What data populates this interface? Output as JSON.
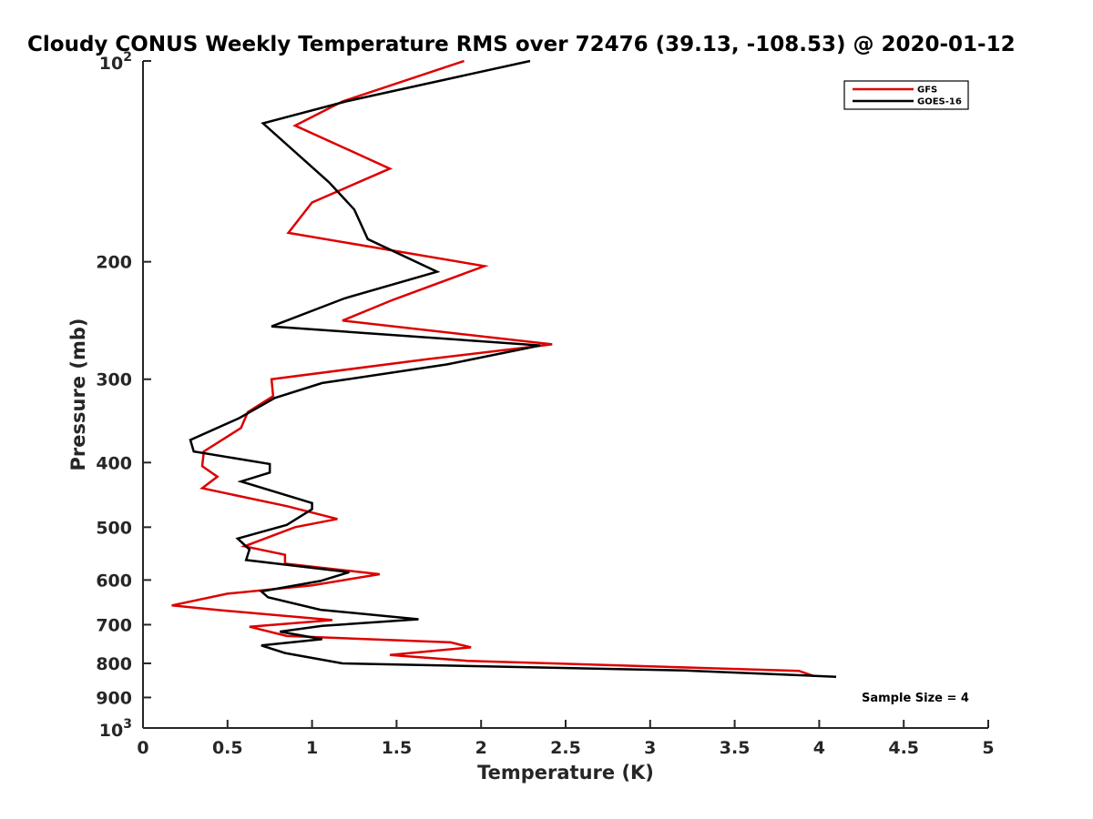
{
  "chart_data": {
    "type": "line",
    "title": "Cloudy CONUS Weekly Temperature RMS over 72476 (39.13, -108.53) @ 2020-01-12",
    "xlabel": "Temperature (K)",
    "ylabel": "Pressure (mb)",
    "xlim": [
      0,
      5
    ],
    "ylim": [
      100,
      1000
    ],
    "y_scale": "log",
    "y_reversed": true,
    "x_ticks": [
      "0",
      "0.5",
      "1",
      "1.5",
      "2",
      "2.5",
      "3",
      "3.5",
      "4",
      "4.5",
      "5"
    ],
    "y_ticks": [
      {
        "value": 200,
        "label": "200"
      },
      {
        "value": 300,
        "label": "300"
      },
      {
        "value": 400,
        "label": "400"
      },
      {
        "value": 500,
        "label": "500"
      },
      {
        "value": 600,
        "label": "600"
      },
      {
        "value": 700,
        "label": "700"
      },
      {
        "value": 800,
        "label": "800"
      },
      {
        "value": 900,
        "label": "900"
      }
    ],
    "y_tick_top": {
      "value": 100,
      "base": "10",
      "exp": "2"
    },
    "y_tick_bottom": {
      "value": 1000,
      "base": "10",
      "exp": "3"
    },
    "grid": false,
    "legend_position": "top-right",
    "annotation": "Sample Size = 4",
    "series": [
      {
        "name": "GFS",
        "color": "#dd0000",
        "points": [
          [
            1.9,
            100
          ],
          [
            1.18,
            115
          ],
          [
            0.9,
            125
          ],
          [
            1.46,
            145
          ],
          [
            1.0,
            163
          ],
          [
            0.86,
            181
          ],
          [
            2.02,
            203
          ],
          [
            1.48,
            228
          ],
          [
            1.18,
            245
          ],
          [
            2.42,
            266
          ],
          [
            1.68,
            280
          ],
          [
            0.76,
            300
          ],
          [
            0.77,
            318
          ],
          [
            0.62,
            336
          ],
          [
            0.58,
            355
          ],
          [
            0.36,
            385
          ],
          [
            0.35,
            405
          ],
          [
            0.44,
            420
          ],
          [
            0.35,
            437
          ],
          [
            0.85,
            465
          ],
          [
            1.15,
            486
          ],
          [
            0.9,
            500
          ],
          [
            0.6,
            534
          ],
          [
            0.84,
            550
          ],
          [
            0.84,
            567
          ],
          [
            1.4,
            588
          ],
          [
            1.0,
            611
          ],
          [
            0.5,
            629
          ],
          [
            0.17,
            655
          ],
          [
            0.46,
            666
          ],
          [
            1.12,
            689
          ],
          [
            0.63,
            705
          ],
          [
            0.85,
            728
          ],
          [
            1.82,
            744
          ],
          [
            1.94,
            757
          ],
          [
            1.46,
            777
          ],
          [
            1.92,
            793
          ],
          [
            3.88,
            821
          ],
          [
            3.97,
            836
          ],
          [
            3.97,
            836
          ]
        ]
      },
      {
        "name": "GOES-16",
        "color": "#000000",
        "points": [
          [
            2.29,
            100
          ],
          [
            1.2,
            115
          ],
          [
            0.71,
            124
          ],
          [
            1.1,
            152
          ],
          [
            1.25,
            167
          ],
          [
            1.33,
            185
          ],
          [
            1.74,
            207
          ],
          [
            1.19,
            227
          ],
          [
            0.76,
            250
          ],
          [
            2.35,
            267
          ],
          [
            1.8,
            285
          ],
          [
            1.06,
            304
          ],
          [
            0.78,
            320
          ],
          [
            0.57,
            343
          ],
          [
            0.28,
            370
          ],
          [
            0.3,
            385
          ],
          [
            0.75,
            402
          ],
          [
            0.75,
            414
          ],
          [
            0.58,
            427
          ],
          [
            1.0,
            460
          ],
          [
            1.0,
            470
          ],
          [
            0.85,
            496
          ],
          [
            0.56,
            520
          ],
          [
            0.63,
            540
          ],
          [
            0.61,
            560
          ],
          [
            1.22,
            584
          ],
          [
            1.05,
            602
          ],
          [
            0.7,
            624
          ],
          [
            0.74,
            637
          ],
          [
            1.05,
            665
          ],
          [
            1.63,
            687
          ],
          [
            1.06,
            703
          ],
          [
            0.81,
            717
          ],
          [
            1.06,
            736
          ],
          [
            0.7,
            752
          ],
          [
            0.84,
            772
          ],
          [
            1.18,
            800
          ],
          [
            3.2,
            820
          ],
          [
            4.1,
            838
          ]
        ]
      }
    ]
  }
}
